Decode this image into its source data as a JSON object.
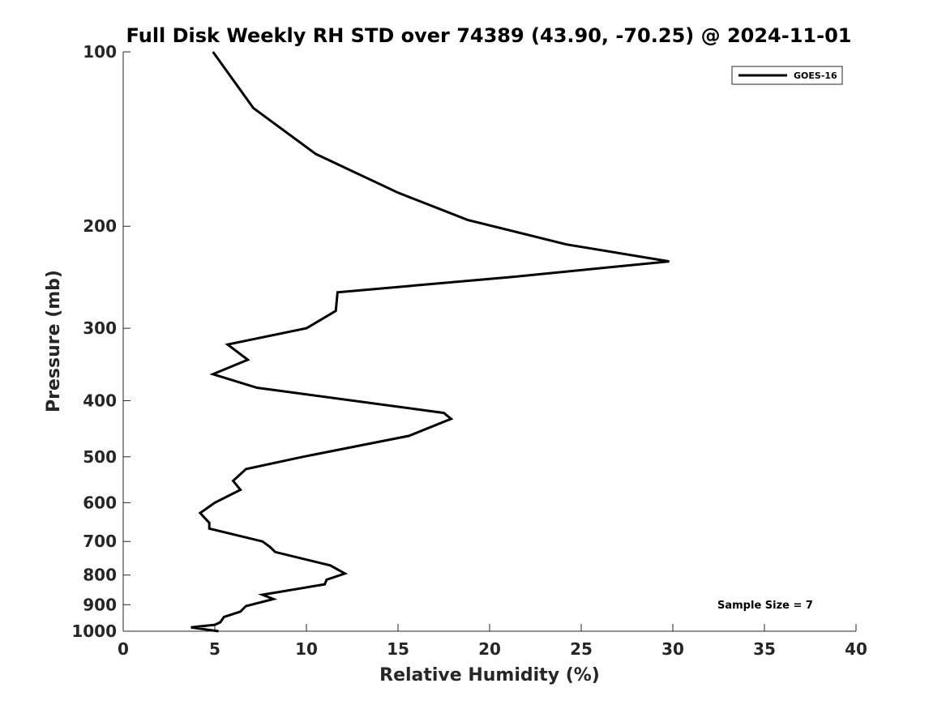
{
  "chart_data": {
    "type": "line",
    "title": "Full Disk Weekly RH STD over 74389 (43.90, -70.25) @ 2024-11-01",
    "xlabel": "Relative Humidity (%)",
    "ylabel": "Pressure (mb)",
    "xlim": [
      0,
      40
    ],
    "ylim": [
      100,
      1000
    ],
    "y_scale": "log",
    "y_reversed": true,
    "x_ticks": [
      0,
      5,
      10,
      15,
      20,
      25,
      30,
      35,
      40
    ],
    "y_ticks": [
      100,
      200,
      300,
      400,
      500,
      600,
      700,
      800,
      900,
      1000
    ],
    "grid": false,
    "legend": "top-right",
    "annotation": "Sample Size = 7",
    "series": [
      {
        "name": "GOES-16",
        "color": "#000000",
        "points": [
          [
            4.9,
            100
          ],
          [
            7.1,
            125
          ],
          [
            10.5,
            150
          ],
          [
            15.0,
            175
          ],
          [
            18.8,
            195
          ],
          [
            24.2,
            215
          ],
          [
            29.8,
            230
          ],
          [
            21.0,
            245
          ],
          [
            11.7,
            260
          ],
          [
            11.6,
            280
          ],
          [
            10.0,
            300
          ],
          [
            5.7,
            320
          ],
          [
            6.8,
            340
          ],
          [
            4.9,
            360
          ],
          [
            7.3,
            380
          ],
          [
            17.5,
            420
          ],
          [
            17.9,
            430
          ],
          [
            15.6,
            460
          ],
          [
            9.8,
            500
          ],
          [
            6.7,
            525
          ],
          [
            6.0,
            550
          ],
          [
            6.4,
            570
          ],
          [
            5.0,
            600
          ],
          [
            4.2,
            625
          ],
          [
            4.7,
            650
          ],
          [
            4.7,
            665
          ],
          [
            7.6,
            700
          ],
          [
            8.0,
            715
          ],
          [
            8.3,
            730
          ],
          [
            11.3,
            770
          ],
          [
            12.1,
            795
          ],
          [
            11.1,
            815
          ],
          [
            11.0,
            830
          ],
          [
            7.6,
            865
          ],
          [
            8.2,
            880
          ],
          [
            6.7,
            905
          ],
          [
            6.4,
            925
          ],
          [
            5.5,
            945
          ],
          [
            5.3,
            965
          ],
          [
            5.0,
            975
          ],
          [
            3.7,
            985
          ],
          [
            5.2,
            1000
          ]
        ]
      }
    ]
  }
}
